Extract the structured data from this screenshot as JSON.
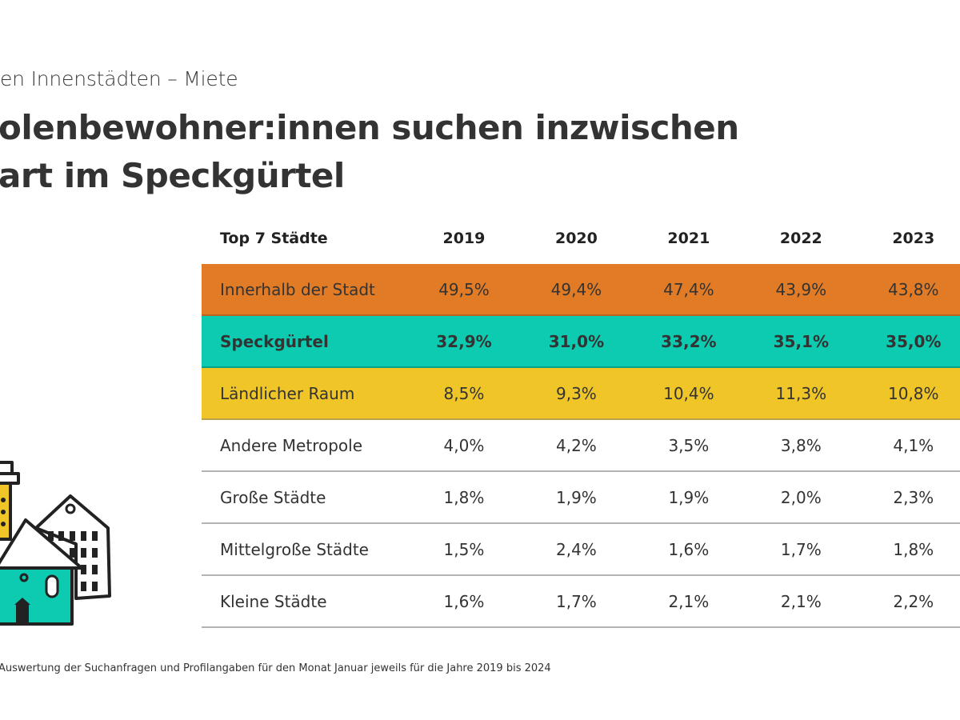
{
  "header": {
    "subtitle": "en Innenstädten – Miete",
    "title_line1": "olenbewohner:innen suchen inzwischen",
    "title_line2": "art im Speckgürtel"
  },
  "table": {
    "columns": [
      "Top 7 Städte",
      "2019",
      "2020",
      "2021",
      "2022",
      "2023"
    ],
    "rows": [
      {
        "label": "Innerhalb der Stadt",
        "values": [
          "49,5%",
          "49,4%",
          "47,4%",
          "43,9%",
          "43,8%"
        ],
        "color": "#e27b25"
      },
      {
        "label": "Speckgürtel",
        "values": [
          "32,9%",
          "31,0%",
          "33,2%",
          "35,1%",
          "35,0%"
        ],
        "color": "#0ccbb0"
      },
      {
        "label": "Ländlicher Raum",
        "values": [
          "8,5%",
          "9,3%",
          "10,4%",
          "11,3%",
          "10,8%"
        ],
        "color": "#f0c527"
      },
      {
        "label": "Andere Metropole",
        "values": [
          "4,0%",
          "4,2%",
          "3,5%",
          "3,8%",
          "4,1%"
        ]
      },
      {
        "label": "Große Städte",
        "values": [
          "1,8%",
          "1,9%",
          "1,9%",
          "2,0%",
          "2,3%"
        ]
      },
      {
        "label": "Mittelgroße Städte",
        "values": [
          "1,5%",
          "2,4%",
          "1,6%",
          "1,7%",
          "1,8%"
        ]
      },
      {
        "label": "Kleine Städte",
        "values": [
          "1,6%",
          "1,7%",
          "2,1%",
          "2,1%",
          "2,2%"
        ]
      }
    ]
  },
  "footnote": "Auswertung der Suchanfragen und Profilangaben für den Monat Januar jeweils für die Jahre 2019 bis 2024"
}
